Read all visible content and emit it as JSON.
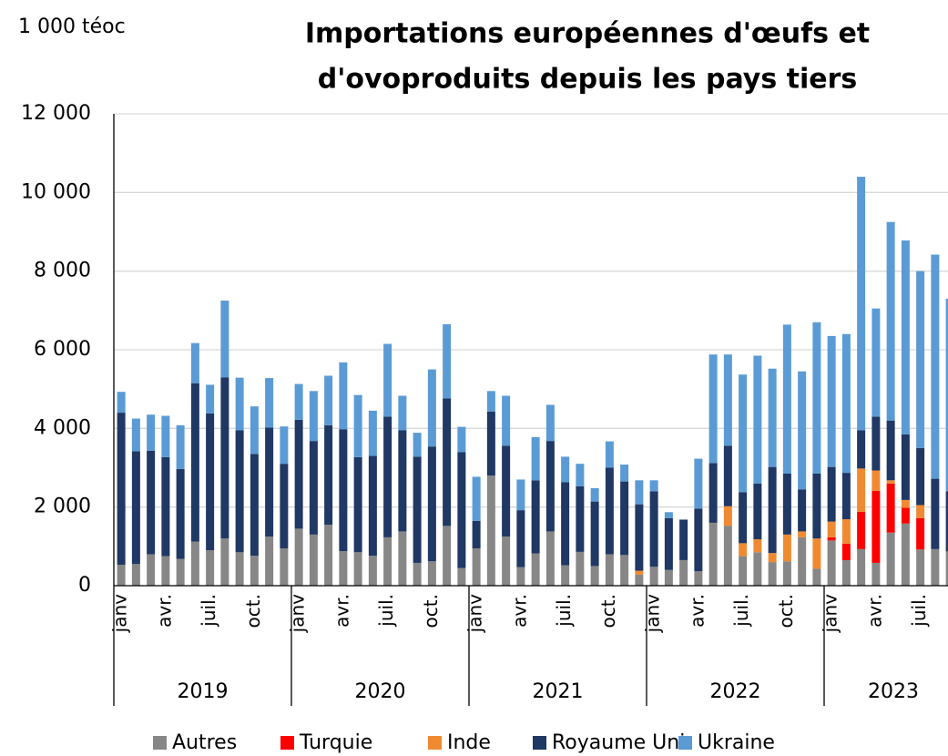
{
  "chart_data": {
    "type": "stacked_bar",
    "title": [
      "Importations européennes d'œufs et",
      "d'ovoproduits depuis les pays tiers"
    ],
    "y_unit": "1 000 téoc",
    "categories": [
      "janv",
      null,
      null,
      "avr.",
      null,
      null,
      "juil.",
      null,
      null,
      "oct.",
      null,
      null,
      "janv",
      null,
      null,
      "avr.",
      null,
      null,
      "juil.",
      null,
      null,
      "oct.",
      null,
      null,
      "janv",
      null,
      null,
      "avr.",
      null,
      null,
      "juil.",
      null,
      null,
      "oct.",
      null,
      null,
      "janv",
      null,
      null,
      "avr.",
      null,
      null,
      "juil.",
      null,
      null,
      "oct.",
      null,
      null,
      "janv",
      null,
      null,
      "avr.",
      null,
      null,
      "juil.",
      null,
      null
    ],
    "groups": [
      "2019",
      "2020",
      "2021",
      "2022",
      "2023"
    ],
    "series": [
      {
        "name": "Autres",
        "color": "#878787",
        "values": [
          530,
          550,
          800,
          750,
          680,
          1120,
          900,
          1200,
          850,
          760,
          1250,
          950,
          1450,
          1300,
          1550,
          880,
          850,
          760,
          1230,
          1380,
          580,
          620,
          1520,
          450,
          950,
          2800,
          1250,
          470,
          820,
          1380,
          520,
          860,
          500,
          800,
          780,
          280,
          480,
          400,
          650,
          370,
          1600,
          1520,
          750,
          850,
          600,
          620,
          1230,
          430,
          1150,
          650,
          930,
          580,
          1350,
          1580,
          920,
          930,
          870
        ]
      },
      {
        "name": "Turquie",
        "color": "#ff0000",
        "values": [
          0,
          0,
          0,
          0,
          0,
          0,
          0,
          0,
          0,
          0,
          0,
          0,
          0,
          0,
          0,
          0,
          0,
          0,
          0,
          0,
          0,
          0,
          0,
          0,
          0,
          0,
          0,
          0,
          0,
          0,
          0,
          0,
          0,
          0,
          0,
          0,
          0,
          0,
          0,
          0,
          0,
          0,
          0,
          0,
          0,
          0,
          0,
          0,
          80,
          420,
          950,
          1830,
          1250,
          400,
          800,
          0,
          0
        ]
      },
      {
        "name": "Inde",
        "color": "#f08a32",
        "values": [
          0,
          0,
          0,
          0,
          0,
          0,
          0,
          0,
          0,
          0,
          0,
          0,
          0,
          0,
          0,
          0,
          0,
          0,
          0,
          0,
          0,
          0,
          0,
          0,
          0,
          0,
          0,
          0,
          0,
          0,
          0,
          0,
          0,
          0,
          0,
          100,
          0,
          0,
          0,
          0,
          0,
          500,
          330,
          330,
          230,
          680,
          150,
          770,
          400,
          620,
          1100,
          520,
          80,
          200,
          330,
          0,
          0
        ]
      },
      {
        "name": "Royaume Uni",
        "color": "#1f3864",
        "values": [
          3870,
          2870,
          2630,
          2520,
          2290,
          4030,
          3480,
          4100,
          3100,
          2590,
          2770,
          2150,
          2770,
          2380,
          2530,
          3100,
          2420,
          2540,
          3070,
          2570,
          2700,
          2920,
          3240,
          2950,
          700,
          1630,
          2310,
          1450,
          1860,
          2300,
          2110,
          1670,
          1640,
          2200,
          1870,
          1690,
          1920,
          1320,
          1030,
          1590,
          1520,
          1540,
          1300,
          1420,
          2190,
          1550,
          1070,
          1650,
          1390,
          1180,
          970,
          1370,
          1520,
          1670,
          1450,
          1790,
          1530
        ]
      },
      {
        "name": "Ukraine",
        "color": "#5b9bd5",
        "values": [
          530,
          830,
          920,
          1050,
          1110,
          1020,
          730,
          1950,
          1340,
          1210,
          1260,
          950,
          910,
          1270,
          1260,
          1700,
          1580,
          1150,
          1850,
          880,
          610,
          1960,
          1890,
          640,
          1120,
          520,
          1270,
          780,
          1100,
          920,
          650,
          570,
          340,
          670,
          430,
          610,
          280,
          150,
          0,
          1270,
          2760,
          2320,
          2990,
          3250,
          2500,
          3790,
          3000,
          3850,
          3330,
          3530,
          6450,
          2750,
          5050,
          4930,
          4500,
          5700,
          4900
        ]
      }
    ],
    "ylim": [
      0,
      12000
    ],
    "yticks": [
      0,
      {
        "value": 2000,
        "label": "2 000"
      },
      {
        "value": 4000,
        "label": "4 000"
      },
      {
        "value": 6000,
        "label": "6 000"
      },
      {
        "value": 8000,
        "label": "8 000"
      },
      {
        "value": 10000,
        "label": "10 000"
      },
      {
        "value": 12000,
        "label": "12 000"
      }
    ],
    "grid": true,
    "legend": "bottom"
  }
}
